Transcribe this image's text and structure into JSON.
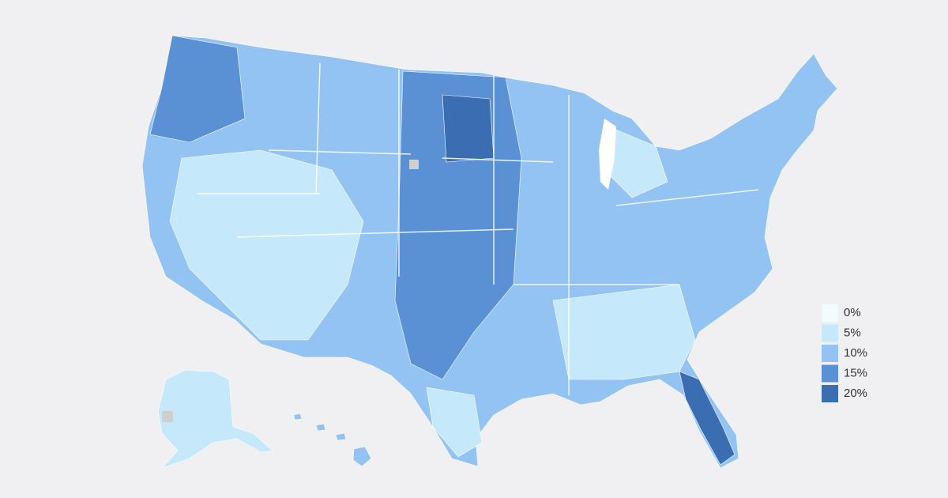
{
  "legend": {
    "items": [
      {
        "label": "0%",
        "color": "#f2fbff"
      },
      {
        "label": "5%",
        "color": "#c6e8fb"
      },
      {
        "label": "10%",
        "color": "#92c3f3"
      },
      {
        "label": "15%",
        "color": "#5a91d5"
      },
      {
        "label": "20%",
        "color": "#3a6db2"
      }
    ]
  }
}
